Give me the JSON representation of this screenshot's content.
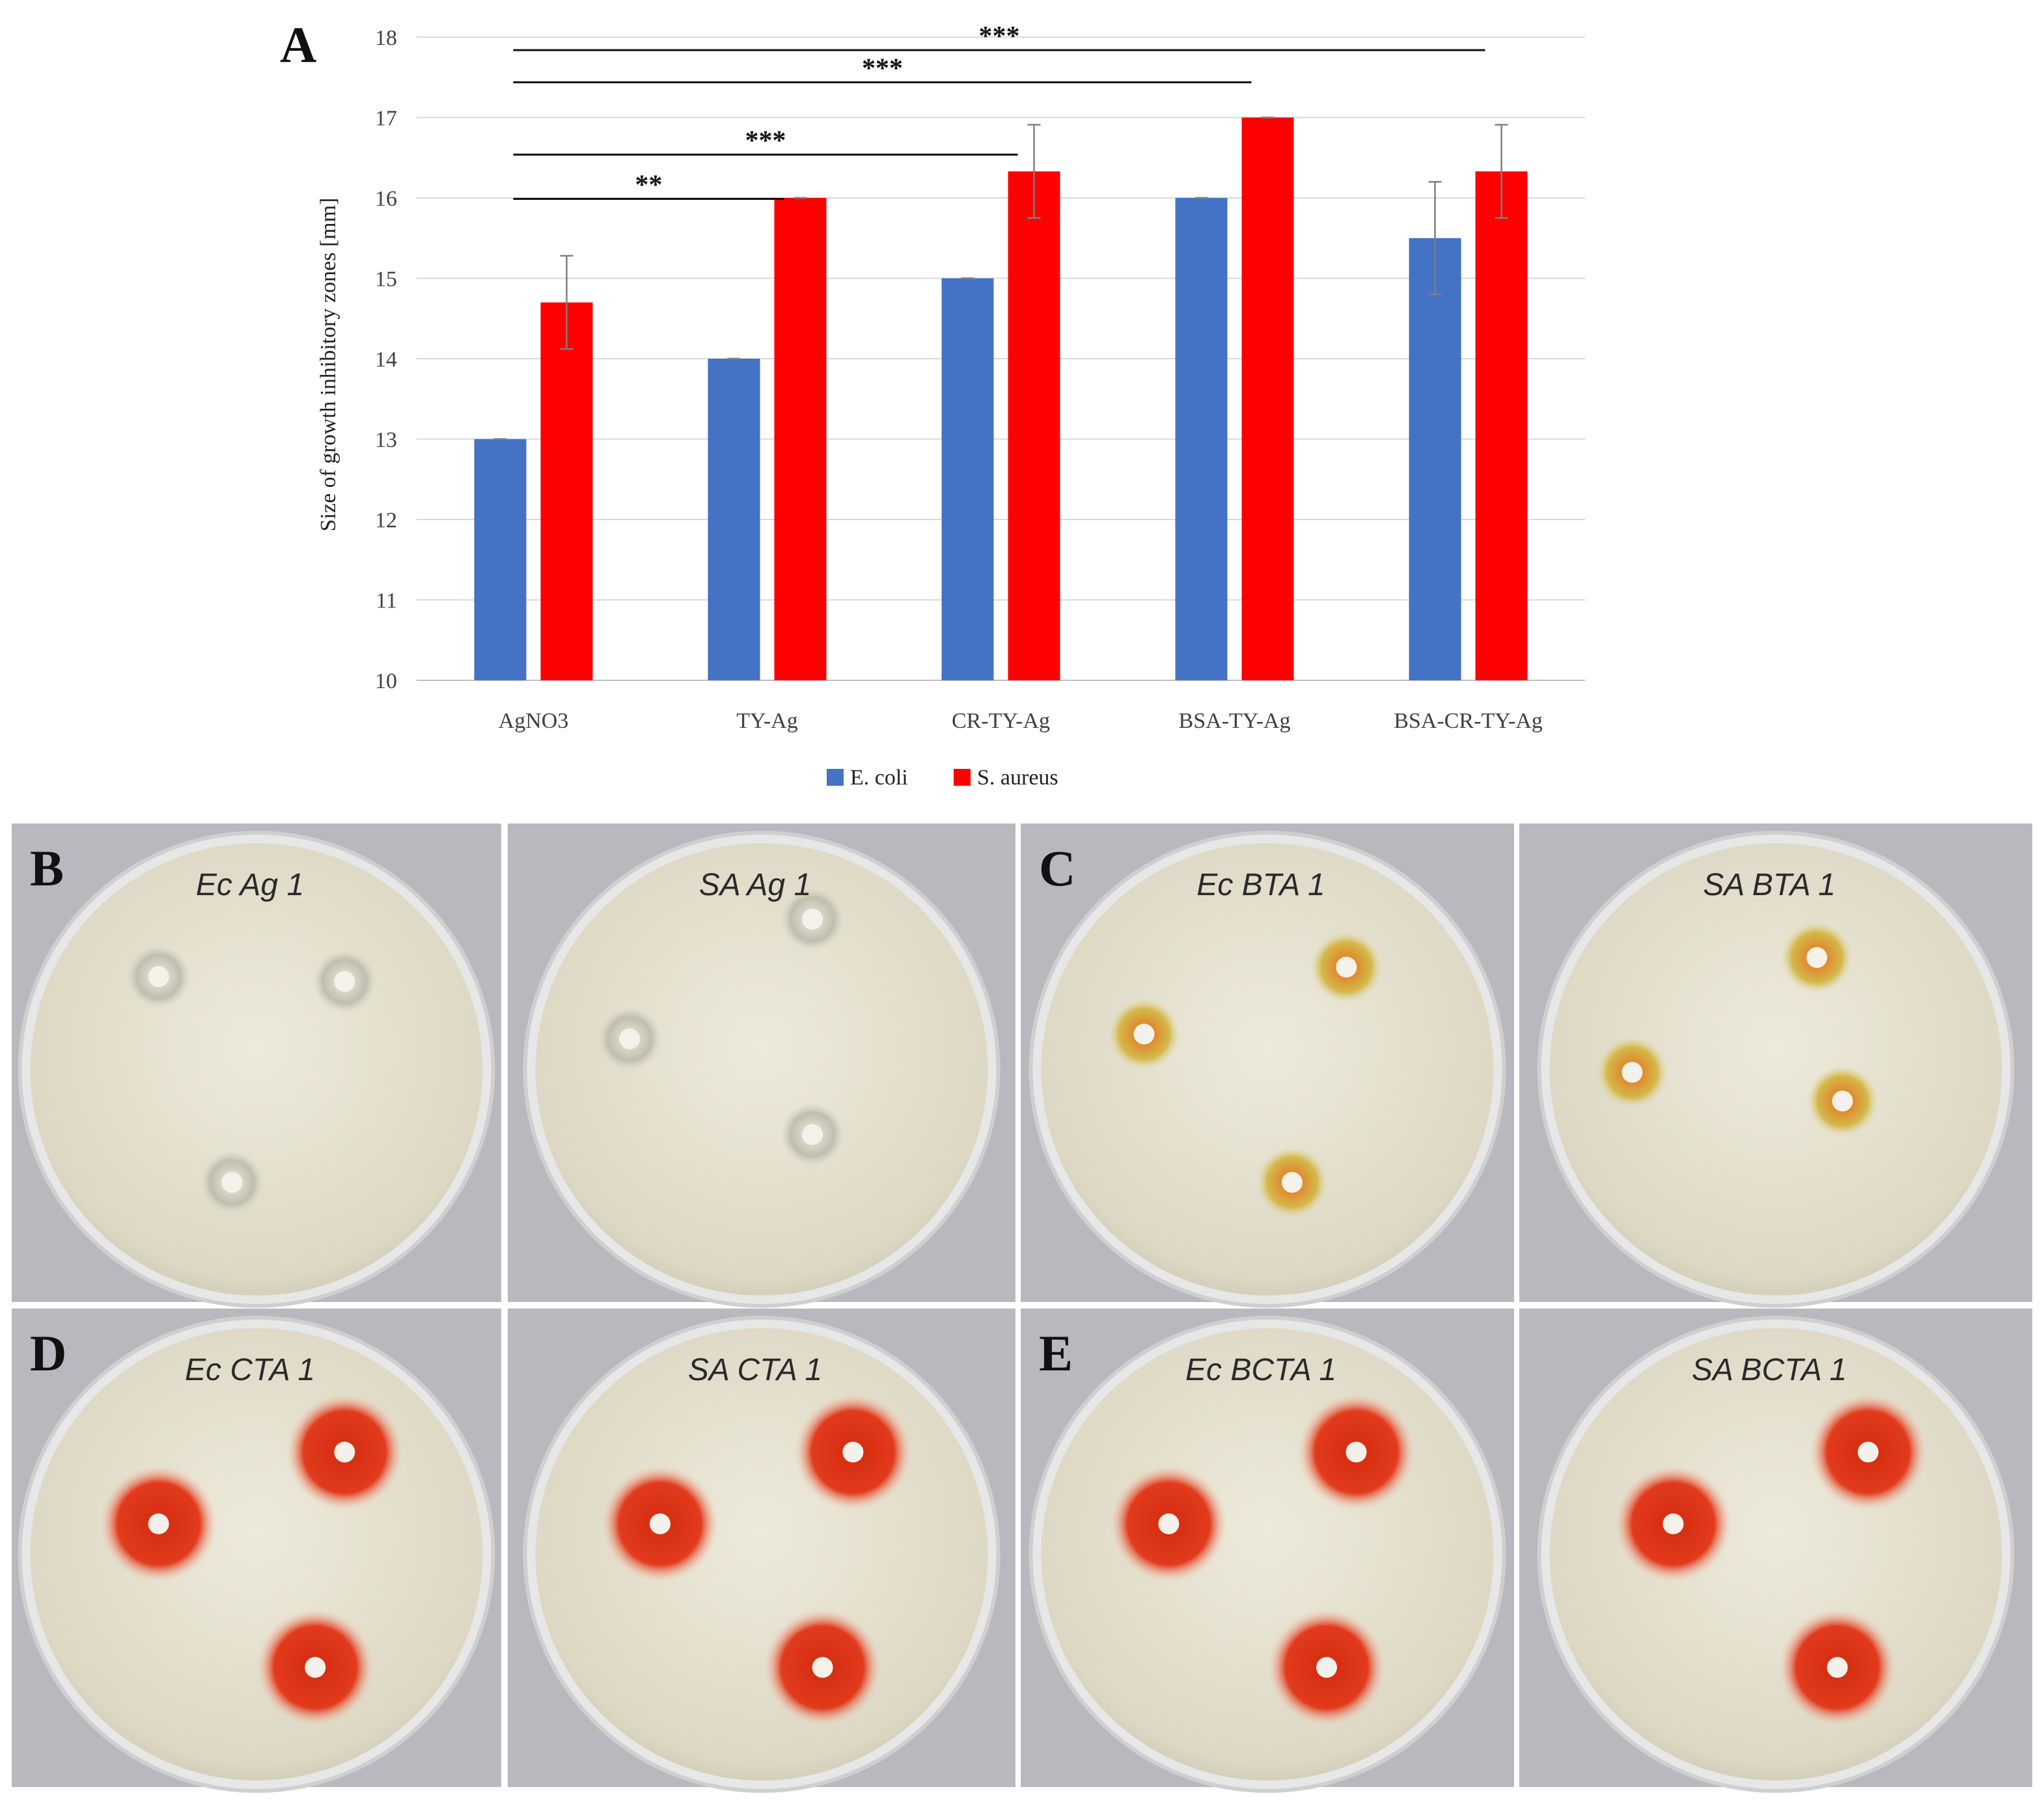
{
  "panel_a_letter": "A",
  "chart_data": {
    "type": "bar",
    "categories": [
      "AgNO3",
      "TY-Ag",
      "CR-TY-Ag",
      "BSA-TY-Ag",
      "BSA-CR-TY-Ag"
    ],
    "series": [
      {
        "name": "E. coli",
        "color": "#4472C4",
        "values": [
          13.0,
          14.0,
          15.0,
          16.0,
          15.5
        ],
        "errors": [
          0.0,
          0.0,
          0.0,
          0.0,
          0.7
        ]
      },
      {
        "name": "S. aureus",
        "color": "#FF0000",
        "values": [
          14.7,
          16.0,
          16.33,
          17.0,
          16.33
        ],
        "errors": [
          0.58,
          0.0,
          0.58,
          0.0,
          0.58
        ]
      }
    ],
    "ylabel": "Size of growth inhibitory zones [mm]",
    "xlabel": "",
    "ylim": [
      10,
      18
    ],
    "yticks": [
      10,
      11,
      12,
      13,
      14,
      15,
      16,
      17,
      18
    ],
    "grid": true,
    "legend": "bottom-center",
    "significance": [
      {
        "from": "AgNO3",
        "to": "BSA-CR-TY-Ag",
        "label": "***",
        "level": 18.0
      },
      {
        "from": "AgNO3",
        "to": "BSA-TY-Ag",
        "label": "***",
        "level": 17.6
      },
      {
        "from": "AgNO3",
        "to": "CR-TY-Ag",
        "label": "***",
        "level": 16.7
      },
      {
        "from": "AgNO3",
        "to": "TY-Ag",
        "label": "**",
        "level": 16.15
      }
    ]
  },
  "photo_panels": [
    {
      "letter": "B",
      "plates": [
        {
          "label": "Ec Ag 1",
          "halo": "none"
        },
        {
          "label": "SA Ag 1",
          "halo": "none"
        }
      ]
    },
    {
      "letter": "C",
      "plates": [
        {
          "label": "Ec BTA 1",
          "halo": "yellow"
        },
        {
          "label": "SA BTA 1",
          "halo": "yellow"
        }
      ]
    },
    {
      "letter": "D",
      "plates": [
        {
          "label": "Ec CTA 1",
          "halo": "red"
        },
        {
          "label": "SA CTA 1",
          "halo": "red"
        }
      ]
    },
    {
      "letter": "E",
      "plates": [
        {
          "label": "Ec BCTA 1",
          "halo": "red"
        },
        {
          "label": "SA BCTA 1",
          "halo": "red"
        }
      ]
    }
  ]
}
